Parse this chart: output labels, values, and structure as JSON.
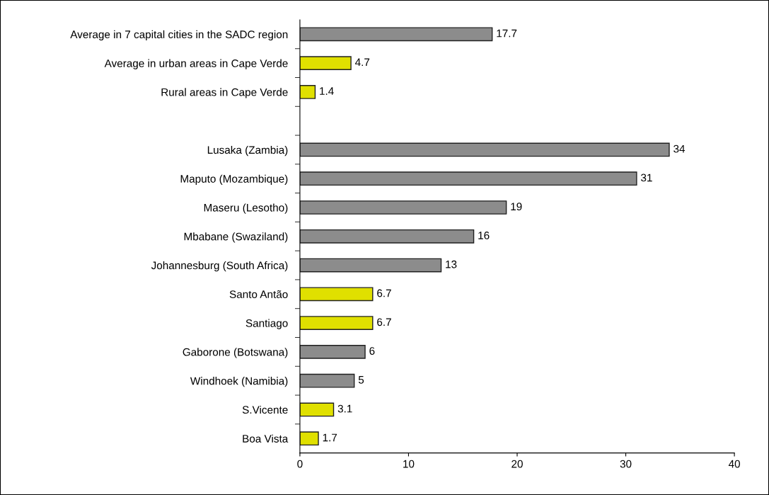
{
  "chart_data": {
    "type": "bar",
    "orientation": "horizontal",
    "categories": [
      "Average in 7 capital cities in the SADC region",
      "Average in urban areas in Cape Verde",
      "Rural areas in Cape Verde",
      null,
      "Lusaka (Zambia)",
      "Maputo (Mozambique)",
      "Maseru (Lesotho)",
      "Mbabane (Swaziland)",
      "Johannesburg (South Africa)",
      "Santo Antão",
      "Santiago",
      "Gaborone (Botswana)",
      "Windhoek (Namibia)",
      "S.Vicente",
      "Boa Vista"
    ],
    "values": [
      17.7,
      4.7,
      1.4,
      null,
      34,
      31,
      19,
      16,
      13,
      6.7,
      6.7,
      6,
      5,
      3.1,
      1.7
    ],
    "colors": [
      "#8c8c8c",
      "#e0e000",
      "#e0e000",
      "#8c8c8c",
      "#8c8c8c",
      "#8c8c8c",
      "#8c8c8c",
      "#8c8c8c",
      "#8c8c8c",
      "#e0e000",
      "#e0e000",
      "#8c8c8c",
      "#8c8c8c",
      "#e0e000",
      "#e0e000"
    ],
    "data_labels": true,
    "xlim": [
      0,
      40
    ],
    "xticks": [
      0,
      10,
      20,
      30,
      40
    ],
    "grid": false
  }
}
